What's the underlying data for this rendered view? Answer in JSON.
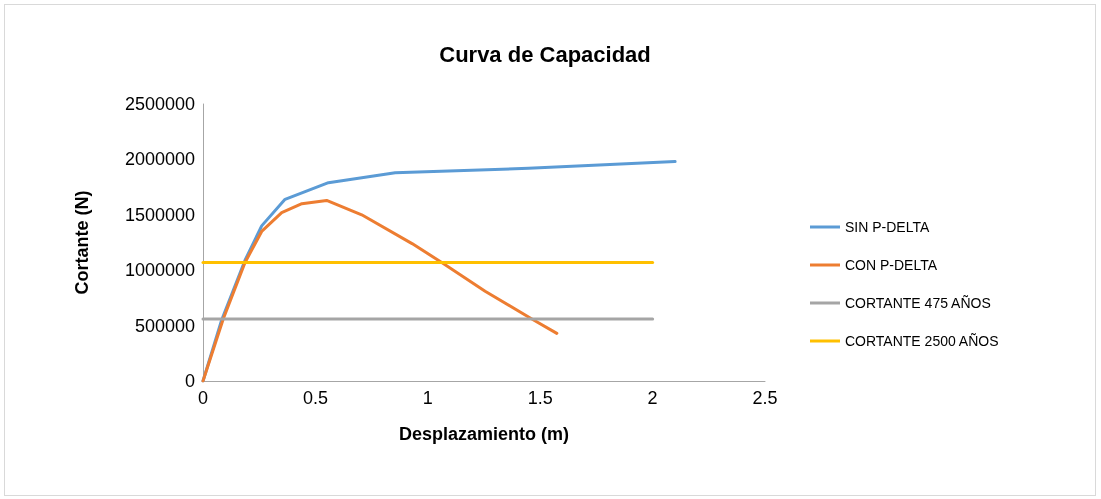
{
  "chart_data": {
    "type": "line",
    "title": "Curva de Capacidad",
    "xlabel": "Desplazamiento (m)",
    "ylabel": "Cortante (N)",
    "xlim": [
      0,
      2.5
    ],
    "xticks": [
      0,
      0.5,
      1,
      1.5,
      2,
      2.5
    ],
    "ylim": [
      0,
      2500000
    ],
    "yticks": [
      0,
      500000,
      1000000,
      1500000,
      2000000,
      2500000
    ],
    "grid": false,
    "legend": "right",
    "marker": "none",
    "line_style": "solid",
    "series": [
      {
        "name": "SIN P-DELTA",
        "color": "#5b9bd5",
        "x": [
          0,
          0.083,
          0.187,
          0.261,
          0.365,
          0.558,
          0.855,
          1.448,
          2.1
        ],
        "values": [
          0,
          550000,
          1090000,
          1400000,
          1640000,
          1790000,
          1880000,
          1920000,
          1980000
        ]
      },
      {
        "name": "CON P-DELTA",
        "color": "#ed7d31",
        "x": [
          0,
          0.09,
          0.187,
          0.261,
          0.35,
          0.44,
          0.55,
          0.706,
          0.93,
          1.062,
          1.255,
          1.463,
          1.574
        ],
        "values": [
          0,
          560000,
          1070000,
          1350000,
          1520000,
          1600000,
          1630000,
          1500000,
          1240000,
          1070000,
          810000,
          560000,
          430000
        ]
      },
      {
        "name": "CORTANTE 475 AÑOS",
        "color": "#a5a5a5",
        "x": [
          0,
          2
        ],
        "values": [
          560000,
          560000
        ]
      },
      {
        "name": "CORTANTE 2500 AÑOS",
        "color": "#ffc000",
        "x": [
          0,
          2
        ],
        "values": [
          1070000,
          1070000
        ]
      }
    ]
  }
}
